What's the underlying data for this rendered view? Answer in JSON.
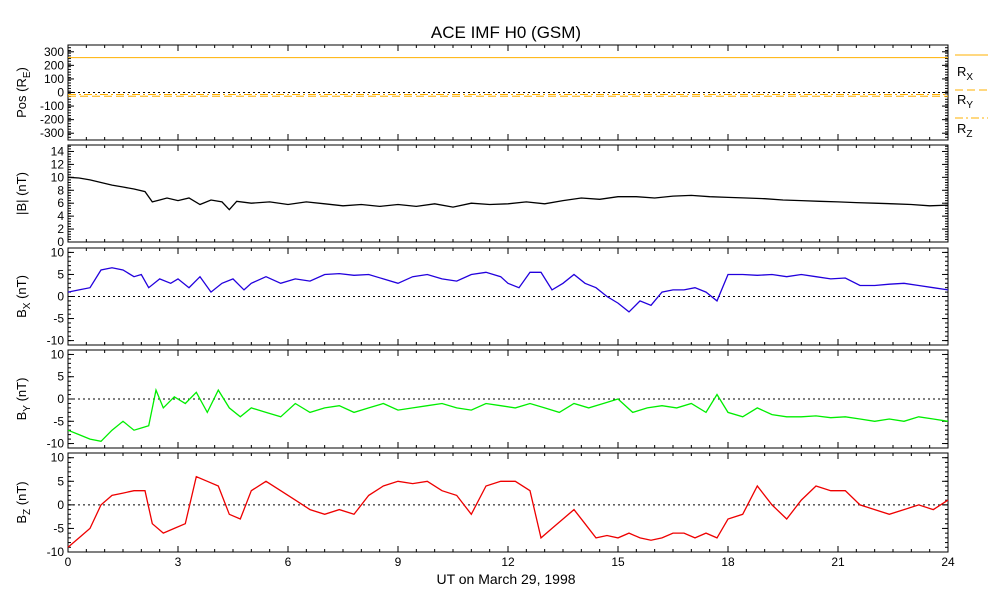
{
  "title": "ACE IMF H0 (GSM)",
  "xlabel": "UT on March 29, 1998",
  "x_ticks": [
    "0",
    "3",
    "6",
    "9",
    "12",
    "15",
    "18",
    "21",
    "24"
  ],
  "colors": {
    "pos_line": "#ffb000",
    "bmag": "#000000",
    "bx": "#2200dd",
    "by": "#00ee00",
    "bz": "#ee0000"
  },
  "legend": {
    "rx": "R",
    "rx_sub": "X",
    "ry": "R",
    "ry_sub": "Y",
    "rz": "R",
    "rz_sub": "Z"
  },
  "panels_text": {
    "pos": {
      "ylabel": "Pos (R",
      "ylabel_sub": "E",
      "ylabel_end": ")",
      "ticks": [
        "300",
        "200",
        "100",
        "0",
        "-100",
        "-200",
        "-300"
      ]
    },
    "bmag": {
      "ylabel": "|B| (nT)",
      "ticks": [
        "14",
        "12",
        "10",
        "8",
        "6",
        "4",
        "2",
        "0"
      ]
    },
    "bx": {
      "ylabel": "B",
      "ylabel_sub": "X",
      "ylabel_end": " (nT)",
      "ticks": [
        "10",
        "5",
        "0",
        "-5",
        "-10"
      ]
    },
    "by": {
      "ylabel": "B",
      "ylabel_sub": "Y",
      "ylabel_end": " (nT)",
      "ticks": [
        "10",
        "5",
        "0",
        "-5",
        "-10"
      ]
    },
    "bz": {
      "ylabel": "B",
      "ylabel_sub": "Z",
      "ylabel_end": " (nT)",
      "ticks": [
        "10",
        "5",
        "0",
        "-5",
        "-10"
      ]
    }
  },
  "chart_data": [
    {
      "type": "line",
      "panel": "pos",
      "ylim": [
        -350,
        350
      ],
      "xlim": [
        0,
        24
      ],
      "series": [
        {
          "name": "RX",
          "x": [
            0,
            24
          ],
          "y": [
            257,
            257
          ],
          "style": "solid"
        },
        {
          "name": "RY",
          "x": [
            0,
            24
          ],
          "y": [
            -28,
            -28
          ],
          "style": "dashed"
        },
        {
          "name": "RZ",
          "x": [
            0,
            24
          ],
          "y": [
            -15,
            -15
          ],
          "style": "dashdot"
        }
      ],
      "zero_line": true
    },
    {
      "type": "line",
      "panel": "bmag",
      "ylim": [
        0,
        15
      ],
      "xlim": [
        0,
        24
      ],
      "series": [
        {
          "name": "",
          "x": [
            0,
            0.3,
            0.6,
            0.9,
            1.2,
            1.5,
            1.8,
            2.1,
            2.3,
            2.5,
            2.7,
            3.0,
            3.3,
            3.6,
            3.9,
            4.2,
            4.4,
            4.6,
            5.0,
            5.5,
            6.0,
            6.5,
            7.0,
            7.5,
            8.0,
            8.5,
            9.0,
            9.5,
            10.0,
            10.5,
            11.0,
            11.5,
            12.0,
            12.5,
            13.0,
            13.5,
            14.0,
            14.5,
            15.0,
            15.5,
            16.0,
            16.5,
            17.0,
            17.5,
            18.0,
            18.5,
            19.0,
            19.5,
            20.0,
            20.5,
            21.0,
            21.5,
            22.0,
            22.5,
            23.0,
            23.5,
            24.0
          ],
          "y": [
            10,
            9.9,
            9.6,
            9.2,
            8.8,
            8.5,
            8.2,
            7.8,
            6.2,
            6.5,
            6.8,
            6.4,
            6.8,
            5.8,
            6.5,
            6.2,
            5.0,
            6.3,
            6.0,
            6.2,
            5.8,
            6.2,
            5.9,
            5.6,
            5.8,
            5.5,
            5.8,
            5.5,
            5.9,
            5.4,
            6.0,
            5.8,
            5.9,
            6.2,
            5.9,
            6.4,
            6.8,
            6.6,
            7.0,
            7.0,
            6.8,
            7.1,
            7.2,
            7.0,
            6.9,
            6.8,
            6.7,
            6.5,
            6.4,
            6.3,
            6.2,
            6.1,
            6.0,
            5.9,
            5.8,
            5.6,
            5.7
          ]
        }
      ]
    },
    {
      "type": "line",
      "panel": "bx",
      "ylim": [
        -11,
        11
      ],
      "xlim": [
        0,
        24
      ],
      "series": [
        {
          "name": "",
          "x": [
            0,
            0.3,
            0.6,
            0.9,
            1.2,
            1.5,
            1.8,
            2.0,
            2.2,
            2.5,
            2.8,
            3.0,
            3.3,
            3.6,
            3.9,
            4.2,
            4.5,
            4.8,
            5.0,
            5.4,
            5.8,
            6.2,
            6.6,
            7.0,
            7.4,
            7.8,
            8.2,
            8.6,
            9.0,
            9.4,
            9.8,
            10.2,
            10.6,
            11.0,
            11.4,
            11.8,
            12.0,
            12.3,
            12.6,
            12.9,
            13.2,
            13.5,
            13.8,
            14.1,
            14.4,
            14.7,
            15.0,
            15.3,
            15.6,
            15.9,
            16.2,
            16.5,
            16.8,
            17.1,
            17.4,
            17.7,
            18.0,
            18.4,
            18.8,
            19.2,
            19.6,
            20.0,
            20.4,
            20.8,
            21.2,
            21.6,
            22.0,
            22.4,
            22.8,
            23.2,
            23.6,
            24.0
          ],
          "y": [
            1,
            1.5,
            2,
            6,
            6.5,
            6,
            4.5,
            5,
            2,
            4,
            3,
            4,
            2,
            4.5,
            1,
            3,
            4,
            1.5,
            3,
            4.5,
            3,
            4,
            3.5,
            5,
            5.2,
            4.8,
            5,
            4,
            3,
            4.5,
            5,
            4,
            3.5,
            5,
            5.5,
            4.5,
            3,
            2,
            5.5,
            5.5,
            1.5,
            3,
            5,
            3,
            2,
            0,
            -1.5,
            -3.5,
            -1,
            -2,
            1,
            1.5,
            1.5,
            2,
            1,
            -1,
            5,
            5,
            4.8,
            5,
            4.5,
            5,
            4.5,
            4,
            4.2,
            2.5,
            2.5,
            2.8,
            3,
            2.5,
            2,
            1.5
          ]
        }
      ],
      "zero_line": true
    },
    {
      "type": "line",
      "panel": "by",
      "ylim": [
        -11,
        11
      ],
      "xlim": [
        0,
        24
      ],
      "series": [
        {
          "name": "",
          "x": [
            0,
            0.3,
            0.6,
            0.9,
            1.2,
            1.5,
            1.8,
            2.0,
            2.2,
            2.4,
            2.6,
            2.9,
            3.2,
            3.5,
            3.8,
            4.1,
            4.4,
            4.7,
            5.0,
            5.4,
            5.8,
            6.2,
            6.6,
            7.0,
            7.4,
            7.8,
            8.2,
            8.6,
            9.0,
            9.4,
            9.8,
            10.2,
            10.6,
            11.0,
            11.4,
            11.8,
            12.2,
            12.6,
            13.0,
            13.4,
            13.8,
            14.2,
            14.6,
            15.0,
            15.4,
            15.8,
            16.2,
            16.6,
            17.0,
            17.4,
            17.7,
            18.0,
            18.4,
            18.8,
            19.2,
            19.6,
            20.0,
            20.4,
            20.8,
            21.2,
            21.6,
            22.0,
            22.4,
            22.8,
            23.2,
            23.6,
            24.0
          ],
          "y": [
            -7,
            -8,
            -9,
            -9.5,
            -7,
            -5,
            -7,
            -6.5,
            -6,
            2,
            -2,
            0.5,
            -1,
            1.5,
            -3,
            2,
            -2,
            -4,
            -2,
            -3,
            -4,
            -1,
            -3,
            -2,
            -1.5,
            -3,
            -2,
            -1,
            -2.5,
            -2,
            -1.5,
            -1,
            -2,
            -2.5,
            -1,
            -1.5,
            -2,
            -1,
            -2,
            -3,
            -1,
            -2,
            -1,
            0,
            -3,
            -2,
            -1.5,
            -2,
            -1,
            -3,
            1,
            -3,
            -4,
            -2,
            -3.5,
            -4,
            -4,
            -3.8,
            -4.2,
            -4,
            -4.5,
            -5,
            -4.5,
            -5,
            -4,
            -4.5,
            -5
          ]
        }
      ],
      "zero_line": true
    },
    {
      "type": "line",
      "panel": "bz",
      "ylim": [
        -10,
        11
      ],
      "xlim": [
        0,
        24
      ],
      "series": [
        {
          "name": "",
          "x": [
            0,
            0.3,
            0.6,
            0.9,
            1.2,
            1.5,
            1.8,
            2.1,
            2.3,
            2.6,
            2.9,
            3.2,
            3.5,
            3.8,
            4.1,
            4.4,
            4.7,
            5.0,
            5.4,
            5.8,
            6.2,
            6.6,
            7.0,
            7.4,
            7.8,
            8.2,
            8.6,
            9.0,
            9.4,
            9.8,
            10.2,
            10.6,
            11.0,
            11.4,
            11.8,
            12.2,
            12.6,
            12.9,
            13.2,
            13.5,
            13.8,
            14.1,
            14.4,
            14.7,
            15.0,
            15.3,
            15.6,
            15.9,
            16.2,
            16.5,
            16.8,
            17.1,
            17.4,
            17.7,
            18.0,
            18.4,
            18.8,
            19.2,
            19.6,
            20.0,
            20.4,
            20.8,
            21.2,
            21.6,
            22.0,
            22.4,
            22.8,
            23.2,
            23.6,
            24.0
          ],
          "y": [
            -9,
            -7,
            -5,
            0,
            2,
            2.5,
            3,
            3,
            -4,
            -6,
            -5,
            -4,
            6,
            5,
            4,
            -2,
            -3,
            3,
            5,
            3,
            1,
            -1,
            -2,
            -1,
            -2,
            2,
            4,
            5,
            4.5,
            5,
            3,
            2,
            -2,
            4,
            5,
            5,
            3,
            -7,
            -5,
            -3,
            -1,
            -4,
            -7,
            -6.5,
            -7,
            -6,
            -7,
            -7.5,
            -7,
            -6,
            -6,
            -7,
            -6,
            -7,
            -3,
            -2,
            4,
            0,
            -3,
            1,
            4,
            3,
            3,
            0,
            -1,
            -2,
            -1,
            0,
            -1,
            1
          ]
        }
      ],
      "zero_line": true
    }
  ]
}
